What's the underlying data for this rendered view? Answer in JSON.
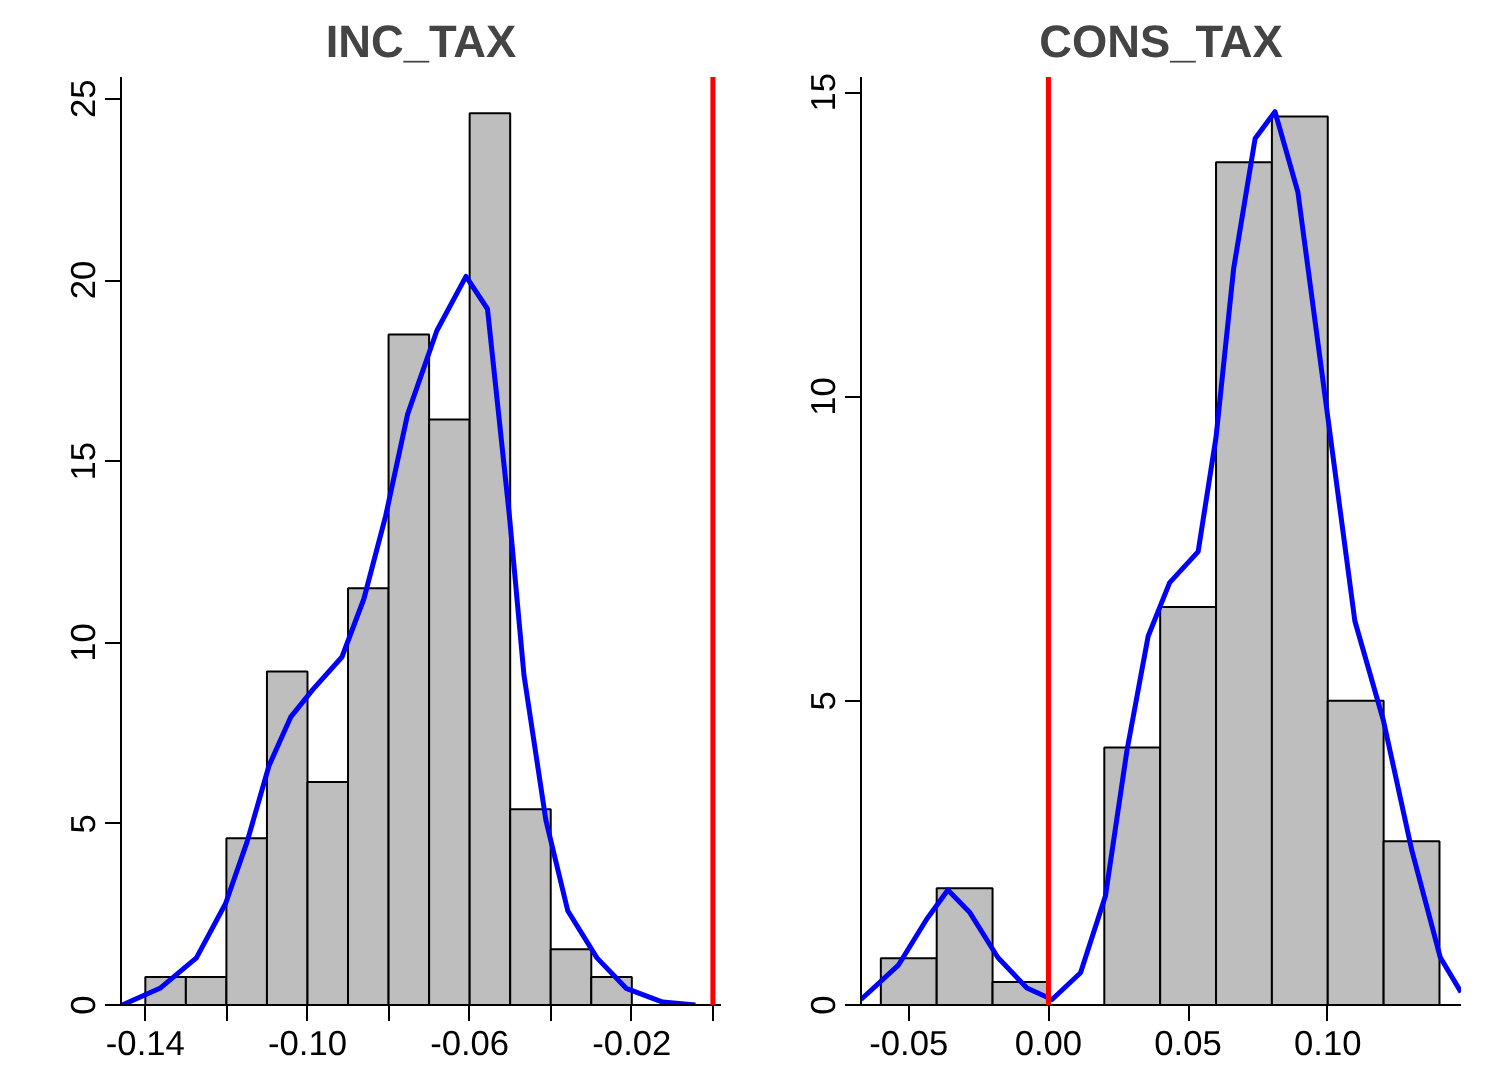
{
  "chart_data": [
    {
      "type": "histogram",
      "title": "INC_TAX",
      "bins": [
        -0.14,
        -0.13,
        -0.12,
        -0.11,
        -0.1,
        -0.09,
        -0.08,
        -0.07,
        -0.06,
        -0.05,
        -0.04,
        -0.03,
        -0.02
      ],
      "values": [
        0.77,
        0.77,
        4.6,
        9.2,
        6.15,
        11.5,
        18.5,
        16.15,
        24.6,
        5.4,
        1.54,
        0.77
      ],
      "color": "#bebebe",
      "series": [
        {
          "type": "line",
          "color": "#0000ff",
          "x": [
            -0.1457,
            -0.1364,
            -0.1274,
            -0.1202,
            -0.1149,
            -0.1095,
            -0.1041,
            -0.0987,
            -0.0915,
            -0.0861,
            -0.0807,
            -0.0753,
            -0.0681,
            -0.0609,
            -0.0556,
            -0.0502,
            -0.0466,
            -0.0412,
            -0.0358,
            -0.0286,
            -0.0214,
            -0.0124,
            -0.0043
          ],
          "values": [
            0,
            0.46,
            1.3,
            2.8,
            4.5,
            6.6,
            7.95,
            8.7,
            9.6,
            11.2,
            13.5,
            16.3,
            18.6,
            20.1,
            19.2,
            13.5,
            9.1,
            5.1,
            2.6,
            1.3,
            0.46,
            0.08,
            0
          ]
        }
      ],
      "xlim": [
        -0.146,
        0.002
      ],
      "ylim": [
        0,
        25.6
      ],
      "xticks": [
        {
          "value": -0.14,
          "label": "-0.14"
        },
        {
          "value": -0.12,
          "label": null
        },
        {
          "value": -0.1,
          "label": "-0.10"
        },
        {
          "value": -0.08,
          "label": null
        },
        {
          "value": -0.06,
          "label": "-0.06"
        },
        {
          "value": -0.04,
          "label": null
        },
        {
          "value": -0.02,
          "label": "-0.02"
        },
        {
          "value": 0,
          "label": null
        }
      ],
      "yticks": [
        0,
        5,
        10,
        15,
        20,
        25
      ],
      "ref_lines": [
        {
          "axis": "x",
          "value": 0,
          "color": "#ff0000"
        }
      ]
    },
    {
      "type": "histogram",
      "title": "CONS_TAX",
      "bins": [
        -0.06,
        -0.04,
        -0.02,
        0,
        0.02,
        0.04,
        0.06,
        0.08,
        0.1,
        0.12,
        0.14
      ],
      "values": [
        0.77,
        1.92,
        0.38,
        0,
        4.23,
        6.54,
        13.85,
        14.6,
        5.0,
        2.69
      ],
      "color": "#bebebe",
      "series": [
        {
          "type": "line",
          "color": "#0000ff",
          "x": [
            -0.0671,
            -0.0538,
            -0.0436,
            -0.036,
            -0.0283,
            -0.0181,
            -0.0077,
            0.0013,
            0.0115,
            0.0204,
            0.0281,
            0.0357,
            0.0434,
            0.0536,
            0.06,
            0.0663,
            0.074,
            0.0811,
            0.0893,
            0.0995,
            0.1097,
            0.1199,
            0.1301,
            0.1403,
            0.1477
          ],
          "values": [
            0.09,
            0.65,
            1.41,
            1.89,
            1.53,
            0.78,
            0.28,
            0.09,
            0.53,
            1.79,
            4.18,
            6.06,
            6.94,
            7.45,
            9.33,
            12.1,
            14.24,
            14.68,
            13.36,
            9.84,
            6.31,
            4.68,
            2.54,
            0.78,
            0.21
          ]
        }
      ],
      "xlim": [
        -0.0671,
        0.1477
      ],
      "ylim": [
        0,
        15.25
      ],
      "xticks": [
        {
          "value": -0.05,
          "label": "-0.05"
        },
        {
          "value": 0,
          "label": "0.00"
        },
        {
          "value": 0.05,
          "label": "0.05"
        },
        {
          "value": 0.1,
          "label": "0.10"
        }
      ],
      "yticks": [
        0,
        5,
        10,
        15
      ],
      "ref_lines": [
        {
          "axis": "x",
          "value": 0,
          "color": "#ff0000"
        }
      ]
    }
  ]
}
